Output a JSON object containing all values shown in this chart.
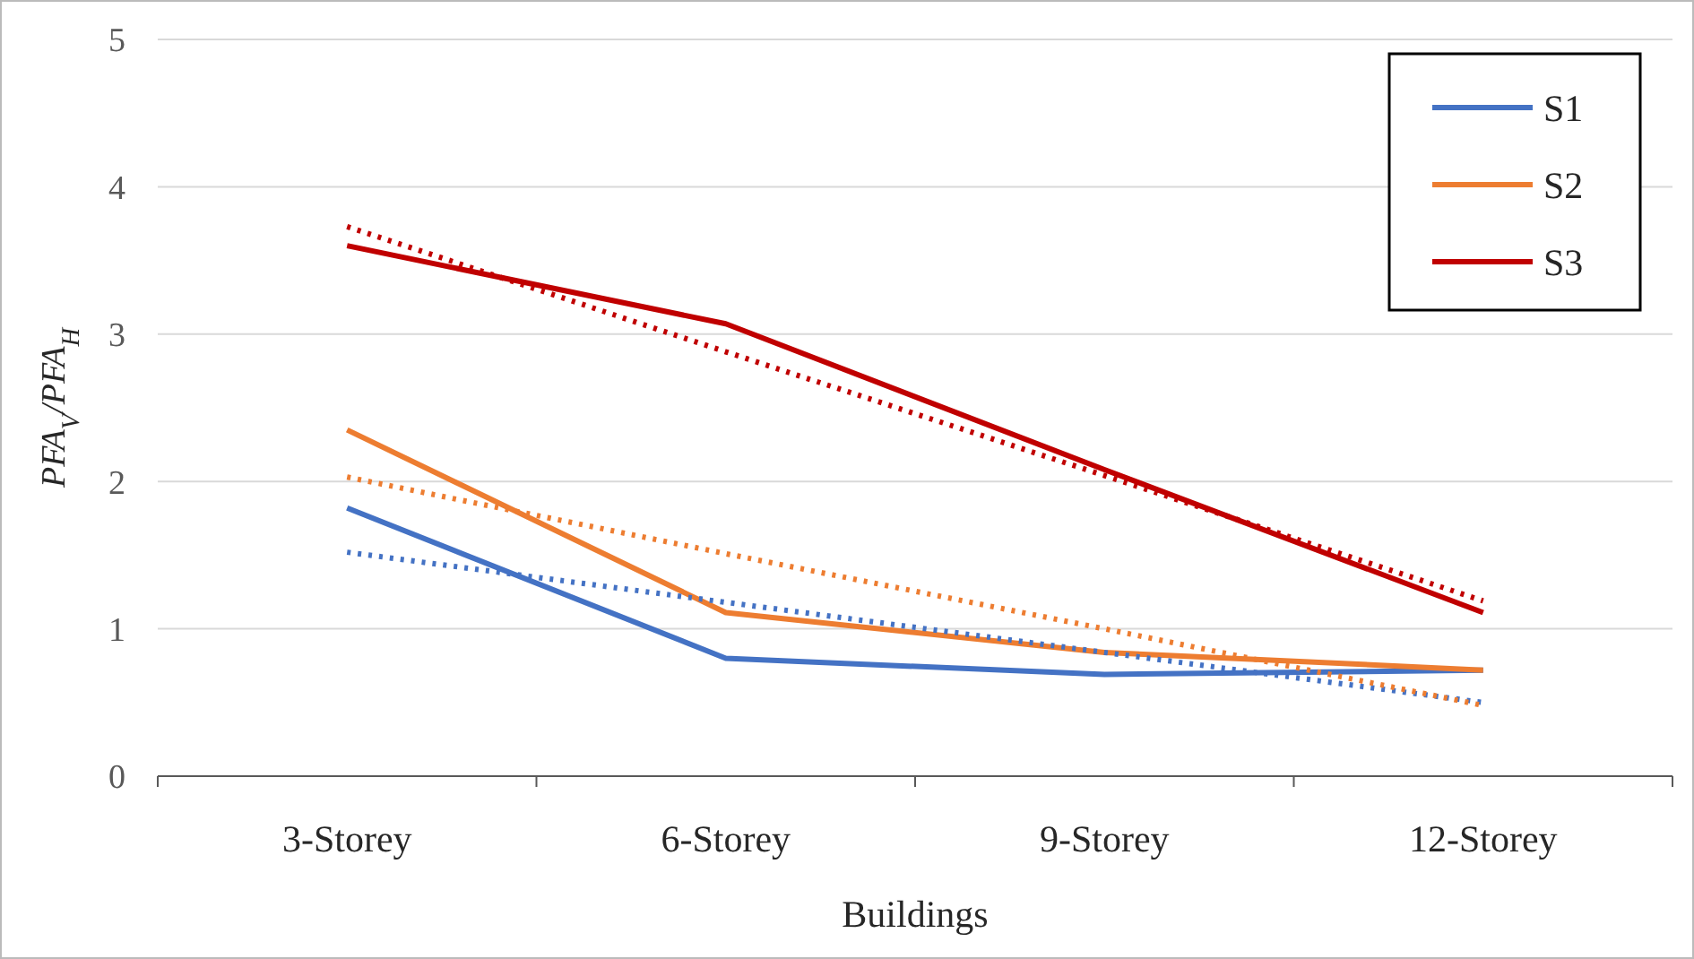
{
  "chart_data": {
    "type": "line",
    "xlabel": "Buildings",
    "ylabel": "PFA$_{V}$/PFA$_{H}$",
    "categories": [
      "3-Storey",
      "6-Storey",
      "9-Storey",
      "12-Storey"
    ],
    "series": [
      {
        "name": "S1",
        "color": "#4472c4",
        "values": [
          1.82,
          0.8,
          0.69,
          0.72
        ]
      },
      {
        "name": "S2",
        "color": "#ed7d31",
        "values": [
          2.35,
          1.11,
          0.84,
          0.72
        ]
      },
      {
        "name": "S3",
        "color": "#c00000",
        "values": [
          3.6,
          3.07,
          2.08,
          1.11
        ]
      },
      {
        "color": "#4472c4",
        "values": [
          1.52,
          1.18,
          0.84,
          0.5
        ],
        "line_style": "dotted"
      },
      {
        "color": "#ed7d31",
        "values": [
          2.03,
          1.51,
          1.0,
          0.48
        ],
        "line_style": "dotted"
      },
      {
        "color": "#c00000",
        "values": [
          3.73,
          2.88,
          2.04,
          1.19
        ],
        "line_style": "dotted"
      }
    ],
    "ylim": [
      0,
      5
    ],
    "yticks": [
      0,
      1,
      2,
      3,
      4,
      5
    ],
    "grid": "y",
    "legend": "top right",
    "line_style": "solid",
    "marker": "none"
  }
}
